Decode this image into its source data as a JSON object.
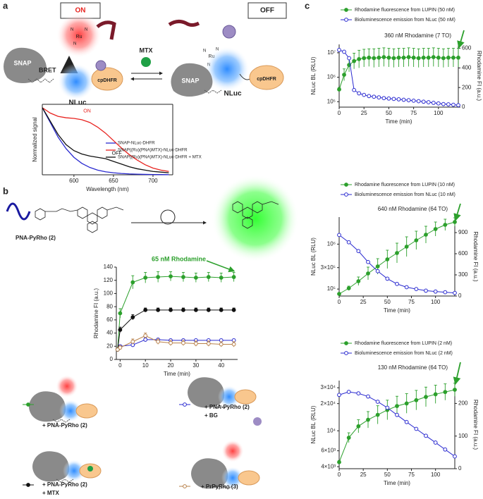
{
  "panels": [
    "a",
    "b",
    "c"
  ],
  "scheme_a": {
    "on": "ON",
    "off": "OFF",
    "mtx": "MTX",
    "bret": "BRET",
    "snap": "SNAP",
    "nluc": "NLuc",
    "cpdhfr": "cpDHFR",
    "ru": "Ru",
    "n": "N"
  },
  "scheme_b": {
    "probe": "PNA-PyRho (2)"
  },
  "chart_data": [
    {
      "type": "line",
      "xlabel": "Wavelength (nm)",
      "ylabel": "Normalized signal",
      "x": [
        560,
        570,
        580,
        590,
        600,
        610,
        620,
        630,
        640,
        650,
        660,
        670,
        680,
        690,
        700,
        710,
        720
      ],
      "xlim": [
        560,
        725
      ],
      "xticks": [
        600,
        650,
        700
      ],
      "ylim": [
        0,
        1.05
      ],
      "legend": "right",
      "annotations": [
        "ON",
        "OFF"
      ],
      "series": [
        {
          "name": "SNAP-NLuc-DHFR",
          "color": "#2a2ad0",
          "values": [
            1.0,
            0.78,
            0.56,
            0.39,
            0.26,
            0.17,
            0.11,
            0.07,
            0.045,
            0.03,
            0.02,
            0.013,
            0.009,
            0.006,
            0.004,
            0.003,
            0.002
          ]
        },
        {
          "name": "SNAP((Ru)(PNA)MTX)-NLuc-DHFR",
          "color": "#e8231f",
          "values": [
            1.0,
            0.92,
            0.87,
            0.85,
            0.84,
            0.82,
            0.78,
            0.71,
            0.62,
            0.51,
            0.4,
            0.3,
            0.22,
            0.15,
            0.1,
            0.07,
            0.05
          ]
        },
        {
          "name": "SNAP((Ru)(PNA)MTX)-NLuc-DHFR + MTX",
          "color": "#111111",
          "values": [
            1.0,
            0.8,
            0.6,
            0.45,
            0.36,
            0.31,
            0.28,
            0.26,
            0.24,
            0.2,
            0.16,
            0.12,
            0.09,
            0.07,
            0.05,
            0.04,
            0.03
          ]
        }
      ]
    },
    {
      "type": "line",
      "xlabel": "Time (min)",
      "ylabel": "Rhodamine FI (a.u.)",
      "annotation": "65 nM Rhodamine",
      "x": [
        -1,
        0,
        5,
        10,
        15,
        20,
        25,
        30,
        35,
        40,
        45
      ],
      "xlim": [
        -1.5,
        46.5
      ],
      "xticks": [
        0,
        10,
        20,
        30,
        40
      ],
      "ylim": [
        0,
        140
      ],
      "yticks": [
        0,
        20,
        40,
        60,
        80,
        100,
        120,
        140
      ],
      "series": [
        {
          "name": "+ PNA-PyRho (2)",
          "color": "#2ca02c",
          "marker": "filled",
          "values": [
            15,
            70,
            117,
            124,
            125,
            126,
            125,
            124,
            125,
            124,
            125
          ],
          "errors": [
            2,
            7,
            10,
            8,
            8,
            7,
            7,
            7,
            7,
            7,
            7
          ]
        },
        {
          "name": "+ PNA-PyRho (2)",
          "note": "+ BG",
          "color": "#2a2ad0",
          "marker": "open",
          "values": [
            15,
            20,
            22,
            30,
            30,
            29,
            29,
            29,
            29,
            29,
            29
          ],
          "errors": [
            2,
            2,
            2,
            3,
            2,
            2,
            2,
            2,
            2,
            2,
            2
          ]
        },
        {
          "name": "+ PNA-PyRho (2)",
          "note": "+ MTX",
          "color": "#111111",
          "marker": "filled",
          "values": [
            15,
            45,
            64,
            75,
            75,
            75,
            75,
            75,
            75,
            75,
            75
          ],
          "errors": [
            2,
            4,
            4,
            3,
            3,
            3,
            3,
            3,
            3,
            3,
            3
          ]
        },
        {
          "name": "+ PrPyRho (3)",
          "color": "#b8814a",
          "marker": "open",
          "values": [
            15,
            18,
            27,
            36,
            27,
            25,
            25,
            24,
            24,
            23,
            23
          ],
          "errors": [
            2,
            3,
            4,
            4,
            4,
            4,
            4,
            4,
            4,
            4,
            4
          ]
        }
      ]
    },
    {
      "type": "line",
      "xlabel": "Time (min)",
      "ylabel": "NLuc BL (RLU)",
      "y2label": "Rhodamine FI (a.u.)",
      "annotation": "360 nM Rhodamine (7 TO)",
      "x": [
        0,
        5,
        10,
        15,
        20,
        25,
        30,
        35,
        40,
        45,
        50,
        55,
        60,
        65,
        70,
        75,
        80,
        85,
        90,
        95,
        100,
        105,
        110,
        115,
        120
      ],
      "xlim": [
        0,
        120
      ],
      "xticks": [
        0,
        25,
        50,
        75,
        100
      ],
      "ylog": true,
      "ylim": [
        60000,
        22000000
      ],
      "yticks": [
        {
          "value": 100000,
          "label": "10⁵"
        },
        {
          "value": 1000000,
          "label": "10⁶"
        },
        {
          "value": 10000000,
          "label": "10⁷"
        }
      ],
      "y2lim": [
        0,
        640
      ],
      "y2ticks": [
        0,
        200,
        400,
        600
      ],
      "series": [
        {
          "name": "Rhodamine fluorescence from LUPIN (50 nM)",
          "color": "#2ca02c",
          "marker": "filled",
          "axis": "y2",
          "values": [
            180,
            330,
            430,
            470,
            490,
            500,
            505,
            500,
            505,
            510,
            505,
            500,
            505,
            505,
            510,
            505,
            500,
            505,
            505,
            510,
            505,
            500,
            505,
            505,
            505
          ],
          "errors": [
            20,
            60,
            70,
            80,
            90,
            90,
            90,
            95,
            95,
            95,
            95,
            95,
            95,
            95,
            95,
            95,
            95,
            95,
            95,
            95,
            95,
            95,
            95,
            95,
            95
          ]
        },
        {
          "name": "Bioluminescence emission from NLuc (50 nM)",
          "color": "#2a2ad0",
          "marker": "open",
          "values": [
            13000000,
            11000000,
            6000000,
            300000,
            220000,
            190000,
            170000,
            160000,
            150000,
            140000,
            135000,
            130000,
            125000,
            120000,
            115000,
            110000,
            105000,
            100000,
            95000,
            90000,
            85000,
            80000,
            78000,
            75000,
            72000
          ]
        }
      ]
    },
    {
      "type": "line",
      "xlabel": "Time (min)",
      "ylabel": "NLuc BL (RLU)",
      "y2label": "Rhodamine FI (a.u.)",
      "annotation": "640 nM Rhodamine (64 TO)",
      "x": [
        0,
        10,
        20,
        30,
        40,
        50,
        60,
        70,
        80,
        90,
        100,
        110,
        120
      ],
      "xlim": [
        0,
        120
      ],
      "xticks": [
        0,
        25,
        50,
        75,
        100
      ],
      "ylog": true,
      "ylim": [
        70000,
        4000000
      ],
      "yticks": [
        {
          "value": 100000,
          "label": "10⁵"
        },
        {
          "value": 300000,
          "label": "3×10⁵"
        },
        {
          "value": 1000000,
          "label": "10⁶"
        }
      ],
      "y2lim": [
        0,
        1120
      ],
      "y2ticks": [
        0,
        300,
        600,
        900
      ],
      "series": [
        {
          "name": "Rhodamine fluorescence from LUPIN (10 nM)",
          "color": "#2ca02c",
          "marker": "filled",
          "axis": "y2",
          "values": [
            30,
            110,
            210,
            320,
            420,
            520,
            610,
            700,
            790,
            870,
            950,
            1010,
            1050
          ],
          "errors": [
            10,
            30,
            60,
            90,
            110,
            130,
            140,
            140,
            130,
            120,
            100,
            80,
            60
          ]
        },
        {
          "name": "Bioluminescence emission from NLuc (10 nM)",
          "color": "#2a2ad0",
          "marker": "open",
          "values": [
            1600000,
            1100000,
            700000,
            400000,
            250000,
            170000,
            130000,
            110000,
            100000,
            92000,
            88000,
            85000,
            82000
          ]
        }
      ]
    },
    {
      "type": "line",
      "xlabel": "Time (min)",
      "ylabel": "NLuc BL (RLU)",
      "y2label": "Rhodamine FI (a.u.)",
      "annotation": "130 nM Rhodamine (64 TO)",
      "x": [
        0,
        10,
        20,
        30,
        40,
        50,
        60,
        70,
        80,
        90,
        100,
        110,
        120
      ],
      "xlim": [
        0,
        120
      ],
      "xticks": [
        0,
        25,
        50,
        75,
        100
      ],
      "ylog": true,
      "ylim": [
        3800,
        36000
      ],
      "yticks": [
        {
          "value": 4000,
          "label": "4×10³"
        },
        {
          "value": 6000,
          "label": "6×10³"
        },
        {
          "value": 10000,
          "label": "10⁴"
        },
        {
          "value": 20000,
          "label": "2×10⁴"
        },
        {
          "value": 30000,
          "label": "3×10⁴"
        }
      ],
      "y2lim": [
        0,
        270
      ],
      "y2ticks": [
        0,
        100,
        200
      ],
      "series": [
        {
          "name": "Rhodamine fluorescence from LUPIN (2 nM)",
          "color": "#2ca02c",
          "marker": "filled",
          "axis": "y2",
          "values": [
            20,
            95,
            130,
            150,
            165,
            180,
            192,
            200,
            210,
            220,
            228,
            235,
            242
          ],
          "errors": [
            5,
            15,
            20,
            25,
            28,
            30,
            30,
            30,
            30,
            30,
            28,
            25,
            20
          ]
        },
        {
          "name": "Bioluminescence emission from NLuc (2 nM)",
          "color": "#2a2ad0",
          "marker": "open",
          "values": [
            25000,
            27000,
            26000,
            24000,
            21000,
            18000,
            15000,
            12500,
            10500,
            8800,
            7400,
            6200,
            5200
          ]
        }
      ]
    }
  ]
}
